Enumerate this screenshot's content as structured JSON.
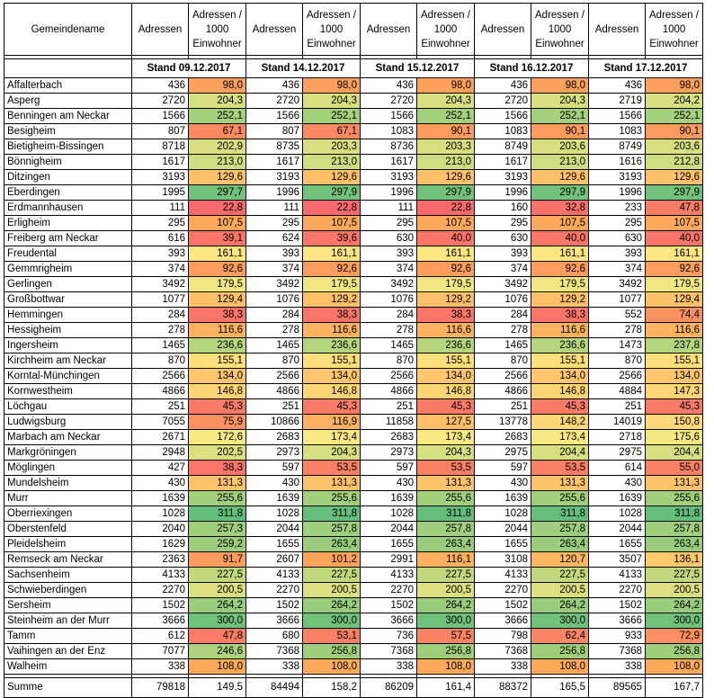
{
  "header": {
    "name": "Gemeindename",
    "adressen": "Adressen",
    "per1000": "Adressen / 1000 Einwohner"
  },
  "stand": [
    "Stand 09.12.2017",
    "Stand 14.12.2017",
    "Stand 15.12.2017",
    "Stand 16.12.2017",
    "Stand 17.12.2017"
  ],
  "rows": [
    {
      "name": "Affalterbach",
      "v": [
        [
          "436",
          "98,0"
        ],
        [
          "436",
          "98,0"
        ],
        [
          "436",
          "98,0"
        ],
        [
          "436",
          "98,0"
        ],
        [
          "436",
          "98,0"
        ]
      ]
    },
    {
      "name": "Asperg",
      "v": [
        [
          "2720",
          "204,3"
        ],
        [
          "2720",
          "204,3"
        ],
        [
          "2720",
          "204,3"
        ],
        [
          "2720",
          "204,3"
        ],
        [
          "2719",
          "204,2"
        ]
      ]
    },
    {
      "name": "Benningen am Neckar",
      "v": [
        [
          "1566",
          "252,1"
        ],
        [
          "1566",
          "252,1"
        ],
        [
          "1566",
          "252,1"
        ],
        [
          "1566",
          "252,1"
        ],
        [
          "1566",
          "252,1"
        ]
      ]
    },
    {
      "name": "Besigheim",
      "v": [
        [
          "807",
          "67,1"
        ],
        [
          "807",
          "67,1"
        ],
        [
          "1083",
          "90,1"
        ],
        [
          "1083",
          "90,1"
        ],
        [
          "1083",
          "90,1"
        ]
      ]
    },
    {
      "name": "Bietigheim-Bissingen",
      "v": [
        [
          "8718",
          "202,9"
        ],
        [
          "8735",
          "203,3"
        ],
        [
          "8736",
          "203,3"
        ],
        [
          "8749",
          "203,6"
        ],
        [
          "8749",
          "203,6"
        ]
      ]
    },
    {
      "name": "Bönnigheim",
      "v": [
        [
          "1617",
          "213,0"
        ],
        [
          "1617",
          "213,0"
        ],
        [
          "1617",
          "213,0"
        ],
        [
          "1617",
          "213,0"
        ],
        [
          "1616",
          "212,8"
        ]
      ]
    },
    {
      "name": "Ditzingen",
      "v": [
        [
          "3193",
          "129,6"
        ],
        [
          "3193",
          "129,6"
        ],
        [
          "3193",
          "129,6"
        ],
        [
          "3193",
          "129,6"
        ],
        [
          "3193",
          "129,6"
        ]
      ]
    },
    {
      "name": "Eberdingen",
      "v": [
        [
          "1995",
          "297,7"
        ],
        [
          "1996",
          "297,9"
        ],
        [
          "1996",
          "297,9"
        ],
        [
          "1996",
          "297,9"
        ],
        [
          "1996",
          "297,9"
        ]
      ]
    },
    {
      "name": "Erdmannhausen",
      "v": [
        [
          "111",
          "22,8"
        ],
        [
          "111",
          "22,8"
        ],
        [
          "111",
          "22,8"
        ],
        [
          "160",
          "32,8"
        ],
        [
          "233",
          "47,8"
        ]
      ]
    },
    {
      "name": "Erligheim",
      "v": [
        [
          "295",
          "107,5"
        ],
        [
          "295",
          "107,5"
        ],
        [
          "295",
          "107,5"
        ],
        [
          "295",
          "107,5"
        ],
        [
          "295",
          "107,5"
        ]
      ]
    },
    {
      "name": "Freiberg am Neckar",
      "v": [
        [
          "616",
          "39,1"
        ],
        [
          "624",
          "39,6"
        ],
        [
          "630",
          "40,0"
        ],
        [
          "630",
          "40,0"
        ],
        [
          "630",
          "40,0"
        ]
      ]
    },
    {
      "name": "Freudental",
      "v": [
        [
          "393",
          "161,1"
        ],
        [
          "393",
          "161,1"
        ],
        [
          "393",
          "161,1"
        ],
        [
          "393",
          "161,1"
        ],
        [
          "393",
          "161,1"
        ]
      ]
    },
    {
      "name": "Gemmrigheim",
      "v": [
        [
          "374",
          "92,6"
        ],
        [
          "374",
          "92,6"
        ],
        [
          "374",
          "92,6"
        ],
        [
          "374",
          "92,6"
        ],
        [
          "374",
          "92,6"
        ]
      ]
    },
    {
      "name": "Gerlingen",
      "v": [
        [
          "3492",
          "179,5"
        ],
        [
          "3492",
          "179,5"
        ],
        [
          "3492",
          "179,5"
        ],
        [
          "3492",
          "179,5"
        ],
        [
          "3492",
          "179,5"
        ]
      ]
    },
    {
      "name": "Großbottwar",
      "v": [
        [
          "1077",
          "129,4"
        ],
        [
          "1076",
          "129,2"
        ],
        [
          "1076",
          "129,2"
        ],
        [
          "1076",
          "129,2"
        ],
        [
          "1077",
          "129,4"
        ]
      ]
    },
    {
      "name": "Hemmingen",
      "v": [
        [
          "284",
          "38,3"
        ],
        [
          "284",
          "38,3"
        ],
        [
          "284",
          "38,3"
        ],
        [
          "284",
          "38,3"
        ],
        [
          "552",
          "74,4"
        ]
      ]
    },
    {
      "name": "Hessigheim",
      "v": [
        [
          "278",
          "116,6"
        ],
        [
          "278",
          "116,6"
        ],
        [
          "278",
          "116,6"
        ],
        [
          "278",
          "116,6"
        ],
        [
          "278",
          "116,6"
        ]
      ]
    },
    {
      "name": "Ingersheim",
      "v": [
        [
          "1465",
          "236,6"
        ],
        [
          "1465",
          "236,6"
        ],
        [
          "1465",
          "236,6"
        ],
        [
          "1465",
          "236,6"
        ],
        [
          "1473",
          "237,8"
        ]
      ]
    },
    {
      "name": "Kirchheim am Neckar",
      "v": [
        [
          "870",
          "155,1"
        ],
        [
          "870",
          "155,1"
        ],
        [
          "870",
          "155,1"
        ],
        [
          "870",
          "155,1"
        ],
        [
          "870",
          "155,1"
        ]
      ]
    },
    {
      "name": "Korntal-Münchingen",
      "v": [
        [
          "2566",
          "134,0"
        ],
        [
          "2566",
          "134,0"
        ],
        [
          "2566",
          "134,0"
        ],
        [
          "2566",
          "134,0"
        ],
        [
          "2566",
          "134,0"
        ]
      ]
    },
    {
      "name": "Kornwestheim",
      "v": [
        [
          "4866",
          "146,8"
        ],
        [
          "4866",
          "146,8"
        ],
        [
          "4866",
          "146,8"
        ],
        [
          "4866",
          "146,8"
        ],
        [
          "4884",
          "147,3"
        ]
      ]
    },
    {
      "name": "Löchgau",
      "v": [
        [
          "251",
          "45,3"
        ],
        [
          "251",
          "45,3"
        ],
        [
          "251",
          "45,3"
        ],
        [
          "251",
          "45,3"
        ],
        [
          "251",
          "45,3"
        ]
      ]
    },
    {
      "name": "Ludwigsburg",
      "v": [
        [
          "7055",
          "75,9"
        ],
        [
          "10866",
          "116,9"
        ],
        [
          "11858",
          "127,5"
        ],
        [
          "13778",
          "148,2"
        ],
        [
          "14019",
          "150,8"
        ]
      ]
    },
    {
      "name": "Marbach am Neckar",
      "v": [
        [
          "2671",
          "172,6"
        ],
        [
          "2683",
          "173,4"
        ],
        [
          "2683",
          "173,4"
        ],
        [
          "2683",
          "173,4"
        ],
        [
          "2718",
          "175,6"
        ]
      ]
    },
    {
      "name": "Markgröningen",
      "v": [
        [
          "2948",
          "202,5"
        ],
        [
          "2973",
          "204,3"
        ],
        [
          "2973",
          "204,3"
        ],
        [
          "2975",
          "204,4"
        ],
        [
          "2975",
          "204,4"
        ]
      ]
    },
    {
      "name": "Möglingen",
      "v": [
        [
          "427",
          "38,3"
        ],
        [
          "597",
          "53,5"
        ],
        [
          "597",
          "53,5"
        ],
        [
          "597",
          "53,5"
        ],
        [
          "614",
          "55,0"
        ]
      ]
    },
    {
      "name": "Mundelsheim",
      "v": [
        [
          "430",
          "131,3"
        ],
        [
          "430",
          "131,3"
        ],
        [
          "430",
          "131,3"
        ],
        [
          "430",
          "131,3"
        ],
        [
          "430",
          "131,3"
        ]
      ]
    },
    {
      "name": "Murr",
      "v": [
        [
          "1639",
          "255,6"
        ],
        [
          "1639",
          "255,6"
        ],
        [
          "1639",
          "255,6"
        ],
        [
          "1639",
          "255,6"
        ],
        [
          "1639",
          "255,6"
        ]
      ]
    },
    {
      "name": "Oberriexingen",
      "v": [
        [
          "1028",
          "311,8"
        ],
        [
          "1028",
          "311,8"
        ],
        [
          "1028",
          "311,8"
        ],
        [
          "1028",
          "311,8"
        ],
        [
          "1028",
          "311,8"
        ]
      ]
    },
    {
      "name": "Oberstenfeld",
      "v": [
        [
          "2040",
          "257,3"
        ],
        [
          "2044",
          "257,8"
        ],
        [
          "2044",
          "257,8"
        ],
        [
          "2044",
          "257,8"
        ],
        [
          "2044",
          "257,8"
        ]
      ]
    },
    {
      "name": "Pleidelsheim",
      "v": [
        [
          "1629",
          "259,2"
        ],
        [
          "1655",
          "263,4"
        ],
        [
          "1655",
          "263,4"
        ],
        [
          "1655",
          "263,4"
        ],
        [
          "1655",
          "263,4"
        ]
      ]
    },
    {
      "name": "Remseck am Neckar",
      "v": [
        [
          "2363",
          "91,7"
        ],
        [
          "2607",
          "101,2"
        ],
        [
          "2991",
          "116,1"
        ],
        [
          "3108",
          "120,7"
        ],
        [
          "3507",
          "136,1"
        ]
      ]
    },
    {
      "name": "Sachsenheim",
      "v": [
        [
          "4133",
          "227,5"
        ],
        [
          "4133",
          "227,5"
        ],
        [
          "4133",
          "227,5"
        ],
        [
          "4133",
          "227,5"
        ],
        [
          "4133",
          "227,5"
        ]
      ]
    },
    {
      "name": "Schwieberdingen",
      "v": [
        [
          "2270",
          "200,5"
        ],
        [
          "2270",
          "200,5"
        ],
        [
          "2270",
          "200,5"
        ],
        [
          "2270",
          "200,5"
        ],
        [
          "2270",
          "200,5"
        ]
      ]
    },
    {
      "name": "Sersheim",
      "v": [
        [
          "1502",
          "264,2"
        ],
        [
          "1502",
          "264,2"
        ],
        [
          "1502",
          "264,2"
        ],
        [
          "1502",
          "264,2"
        ],
        [
          "1502",
          "264,2"
        ]
      ]
    },
    {
      "name": "Steinheim an der Murr",
      "v": [
        [
          "3666",
          "300,0"
        ],
        [
          "3666",
          "300,0"
        ],
        [
          "3666",
          "300,0"
        ],
        [
          "3666",
          "300,0"
        ],
        [
          "3666",
          "300,0"
        ]
      ]
    },
    {
      "name": "Tamm",
      "v": [
        [
          "612",
          "47,8"
        ],
        [
          "680",
          "53,1"
        ],
        [
          "736",
          "57,5"
        ],
        [
          "798",
          "62,4"
        ],
        [
          "933",
          "72,9"
        ]
      ]
    },
    {
      "name": "Vaihingen an der Enz",
      "v": [
        [
          "7077",
          "246,6"
        ],
        [
          "7368",
          "256,8"
        ],
        [
          "7368",
          "256,8"
        ],
        [
          "7368",
          "256,8"
        ],
        [
          "7368",
          "256,8"
        ]
      ]
    },
    {
      "name": "Walheim",
      "v": [
        [
          "338",
          "108,0"
        ],
        [
          "338",
          "108,0"
        ],
        [
          "338",
          "108,0"
        ],
        [
          "338",
          "108,0"
        ],
        [
          "338",
          "108,0"
        ]
      ]
    }
  ],
  "summe": {
    "name": "Summe",
    "v": [
      [
        "79818",
        "149,5"
      ],
      [
        "84494",
        "158,2"
      ],
      [
        "86209",
        "161,4"
      ],
      [
        "88372",
        "165,5"
      ],
      [
        "89565",
        "167,7"
      ]
    ]
  }
}
